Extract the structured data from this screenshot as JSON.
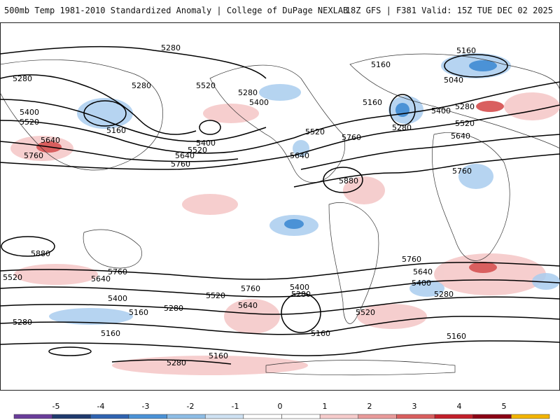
{
  "header": {
    "title": "500mb Temp 1981-2010 Standardized Anomaly | College of DuPage NEXLAB",
    "run_info": "18Z GFS | F381 Valid: 15Z TUE DEC 02 2025"
  },
  "contour_labels": [
    {
      "value": "5280"
    },
    {
      "value": "5280"
    },
    {
      "value": "5280"
    },
    {
      "value": "5520"
    },
    {
      "value": "5280"
    },
    {
      "value": "5400"
    },
    {
      "value": "5520"
    },
    {
      "value": "5160"
    },
    {
      "value": "5640"
    },
    {
      "value": "5760"
    },
    {
      "value": "5400"
    },
    {
      "value": "5520"
    },
    {
      "value": "5640"
    },
    {
      "value": "5760"
    },
    {
      "value": "5400"
    },
    {
      "value": "5520"
    },
    {
      "value": "5640"
    },
    {
      "value": "5760"
    },
    {
      "value": "5880"
    },
    {
      "value": "5160"
    },
    {
      "value": "5160"
    },
    {
      "value": "5040"
    },
    {
      "value": "5160"
    },
    {
      "value": "5280"
    },
    {
      "value": "5400"
    },
    {
      "value": "5280"
    },
    {
      "value": "5520"
    },
    {
      "value": "5640"
    },
    {
      "value": "5760"
    },
    {
      "value": "5880"
    },
    {
      "value": "5520"
    },
    {
      "value": "5760"
    },
    {
      "value": "5640"
    },
    {
      "value": "5400"
    },
    {
      "value": "5160"
    },
    {
      "value": "5280"
    },
    {
      "value": "5160"
    },
    {
      "value": "5280"
    },
    {
      "value": "5520"
    },
    {
      "value": "5640"
    },
    {
      "value": "5760"
    },
    {
      "value": "5400"
    },
    {
      "value": "5280"
    },
    {
      "value": "5160"
    },
    {
      "value": "5520"
    },
    {
      "value": "5760"
    },
    {
      "value": "5640"
    },
    {
      "value": "5400"
    },
    {
      "value": "5280"
    },
    {
      "value": "5160"
    },
    {
      "value": "5160"
    },
    {
      "value": "5280"
    }
  ],
  "colorbar": {
    "ticks": [
      "-5",
      "-4",
      "-3",
      "-2",
      "-1",
      "0",
      "1",
      "2",
      "3",
      "4",
      "5"
    ],
    "colors": [
      "#6a3d9a",
      "#1f3a6e",
      "#2f63b0",
      "#4b92d6",
      "#8ebde6",
      "#cfe2f3",
      "#ffffff",
      "#ffffff",
      "#f6cccc",
      "#e89a9a",
      "#d95f5f",
      "#c21f2a",
      "#8b0014",
      "#f2b400"
    ]
  }
}
